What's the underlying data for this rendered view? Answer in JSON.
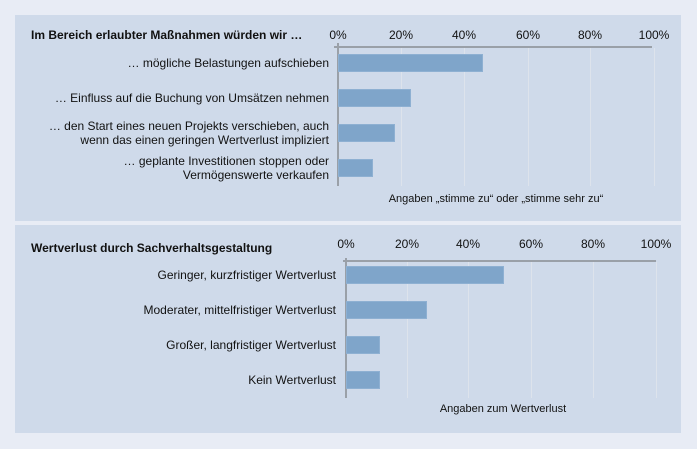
{
  "chart_data": [
    {
      "type": "bar",
      "orientation": "horizontal",
      "title": "Im Bereich erlaubter Maßnahmen würden wir …",
      "categories": [
        "… mögliche Belastungen aufschieben",
        "… Einfluss auf die Buchung von Umsätzen nehmen",
        "… den Start eines neuen Projekts verschieben, auch wenn das einen geringen Wertverlust impliziert",
        "… geplante Investitionen stoppen oder Vermögenswerte verkaufen"
      ],
      "values": [
        46,
        23,
        18,
        11
      ],
      "xlabel": "Angaben „stimme zu“ oder „stimme sehr zu“",
      "ylabel": "",
      "xlim": [
        0,
        100
      ],
      "x_ticks": [
        "0%",
        "20%",
        "40%",
        "60%",
        "80%",
        "100%"
      ],
      "grid": true,
      "bar_color": "#7fa5ca"
    },
    {
      "type": "bar",
      "orientation": "horizontal",
      "title": "Wertverlust durch Sachverhaltsgestaltung",
      "categories": [
        "Geringer, kurzfristiger Wertverlust",
        "Moderater, mittelfristiger Wertverlust",
        "Großer, langfristiger Wertverlust",
        "Kein Wertverlust"
      ],
      "values": [
        51,
        26,
        11,
        11
      ],
      "xlabel": "Angaben zum Wertverlust",
      "ylabel": "",
      "xlim": [
        0,
        100
      ],
      "x_ticks": [
        "0%",
        "20%",
        "40%",
        "60%",
        "80%",
        "100%"
      ],
      "grid": true,
      "bar_color": "#7fa5ca"
    }
  ],
  "panel1": {
    "title": "Im Bereich erlaubter Maßnahmen würden wir …",
    "ticks": [
      "0%",
      "20%",
      "40%",
      "60%",
      "80%",
      "100%"
    ],
    "labels": [
      [
        "… mögliche Belastungen aufschieben"
      ],
      [
        "… Einfluss auf die Buchung von Umsätzen nehmen"
      ],
      [
        "… den Start eines neuen Projekts verschieben, auch",
        "wenn das einen geringen Wertverlust impliziert"
      ],
      [
        "… geplante Investitionen stoppen oder",
        "Vermögenswerte verkaufen"
      ]
    ],
    "xlabel": "Angaben „stimme zu“ oder „stimme sehr zu“"
  },
  "panel2": {
    "title": "Wertverlust durch Sachverhaltsgestaltung",
    "ticks": [
      "0%",
      "20%",
      "40%",
      "60%",
      "80%",
      "100%"
    ],
    "labels": [
      [
        "Geringer, kurzfristiger Wertverlust"
      ],
      [
        "Moderater, mittelfristiger Wertverlust"
      ],
      [
        "Großer, langfristiger Wertverlust"
      ],
      [
        "Kein Wertverlust"
      ]
    ],
    "xlabel": "Angaben zum Wertverlust"
  },
  "colors": {
    "page_bg": "#e8ecf5",
    "panel_bg": "#cfdaea",
    "bar": "#7fa5ca",
    "axis": "#9aa0a8",
    "grid": "#dde3ec"
  }
}
